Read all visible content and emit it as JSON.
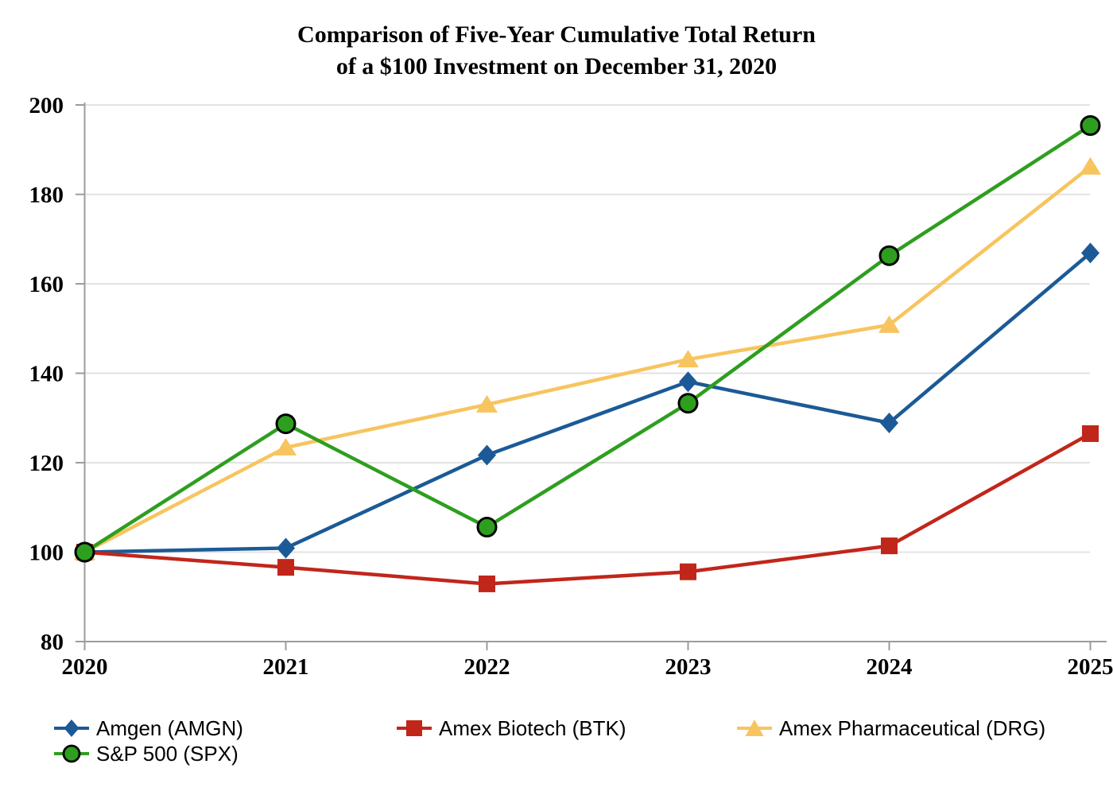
{
  "title": {
    "line1": "Comparison of Five-Year Cumulative Total Return",
    "line2": "of a $100 Investment on December 31, 2020"
  },
  "chart_data": {
    "type": "line",
    "title": "Comparison of Five-Year Cumulative Total Return of a $100 Investment on December 31, 2020",
    "x": [
      2020,
      2021,
      2022,
      2023,
      2024,
      2025
    ],
    "series": [
      {
        "name": "Amgen (AMGN)",
        "marker": "diamond",
        "color_key": "amgen",
        "values": [
          100,
          100.9,
          121.7,
          138.1,
          128.9,
          166.9
        ]
      },
      {
        "name": "Amex Biotech (BTK)",
        "marker": "square",
        "color_key": "btk",
        "values": [
          100,
          96.6,
          92.9,
          95.6,
          101.4,
          126.5
        ]
      },
      {
        "name": "Amex Pharmaceutical (DRG)",
        "marker": "triangle",
        "color_key": "drg",
        "values": [
          100,
          123.4,
          133.0,
          143.1,
          150.8,
          186.2
        ]
      },
      {
        "name": "S&P 500 (SPX)",
        "marker": "circle",
        "color_key": "spx",
        "values": [
          100,
          128.7,
          105.6,
          133.3,
          166.3,
          195.4
        ]
      }
    ],
    "ylim": [
      80,
      200
    ],
    "yticks": [
      80,
      100,
      120,
      140,
      160,
      180,
      200
    ],
    "grid": "horizontal",
    "legend_position": "bottom-left",
    "colors": {
      "amgen": "#1B5A96",
      "btk": "#C1261B",
      "drg": "#F7C45E",
      "spx": "#2E9E1F",
      "grid": "#E3E3E3",
      "axis": "#9C9C9C",
      "text": "#000000"
    }
  }
}
